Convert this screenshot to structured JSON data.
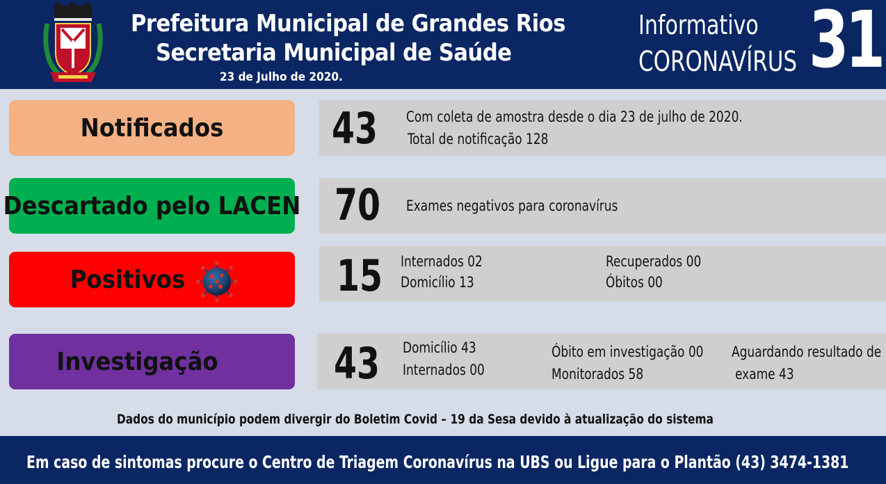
{
  "header": {
    "title_line1": "Prefeitura Municipal de Grandes Rios",
    "title_line2": "Secretaria Municipal de Saúde",
    "date": "23 de Julho de 2020.",
    "info_line1": "Informativo",
    "info_line2": "CORONAVÍRUS",
    "bulletin_number": "31"
  },
  "rows": {
    "notificados": {
      "label": "Notificados",
      "number": "43",
      "line1": "Com coleta de amostra desde o dia 23 de julho de 2020.",
      "line2": "Total  de notificação  128",
      "color": "#f4b183"
    },
    "descartado": {
      "label": "Descartado pelo LACEN",
      "number": "70",
      "line1": "Exames negativos  para coronavírus",
      "color": "#00b050"
    },
    "positivos": {
      "label": "Positivos",
      "number": "15",
      "internados": "Internados 02",
      "domicilio": "Domicílio 13",
      "recuperados": "Recuperados 00",
      "obitos": "Óbitos 00",
      "color": "#ff0000"
    },
    "investigacao": {
      "label": "Investigação",
      "number": "43",
      "domicilio": "Domicílio 43",
      "internados": "Internados 00",
      "obito_investigacao": "Óbito  em investigação  00",
      "monitorados": "Monitorados 58",
      "aguardando_line1": "Aguardando resultado de",
      "aguardando_line2": "exame 43",
      "color": "#7030a0"
    }
  },
  "disclaimer": "Dados do município  podem  divergir  do Boletim  Covid – 19 da Sesa devido à atualização  do sistema",
  "footer": "Em caso de sintomas  procure  o Centro de Triagem  Coronavírus  na UBS ou Ligue para o Plantão  (43) 3474-1381",
  "colors": {
    "header_bg": "#0a2663",
    "page_bg": "#d6dde8",
    "info_box_bg": "#d0cfcf"
  },
  "icons": {
    "crest": "municipal-coat-of-arms-icon",
    "virus": "coronavirus-icon"
  }
}
